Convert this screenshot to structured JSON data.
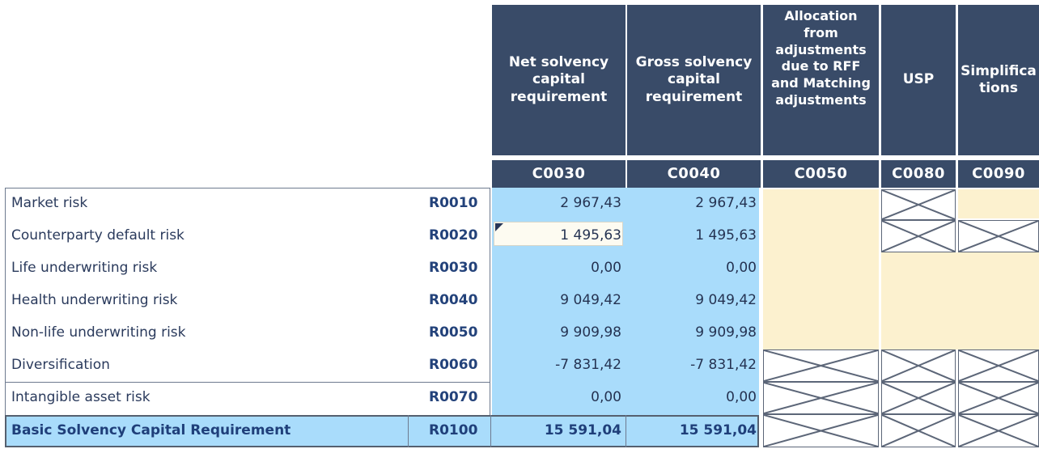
{
  "columns": [
    {
      "header": "Net solvency capital requirement",
      "code": "C0030"
    },
    {
      "header": "Gross solvency capital requirement",
      "code": "C0040"
    },
    {
      "header": "Allocation from adjustments due to RFF and Matching adjustments",
      "code": "C0050"
    },
    {
      "header": "USP",
      "code": "C0080"
    },
    {
      "header": "Simplifica tions",
      "code": "C0090"
    }
  ],
  "rows": [
    {
      "label": "Market risk",
      "code": "R0010",
      "net": "2 967,43",
      "gross": "2 967,43"
    },
    {
      "label": "Counterparty default risk",
      "code": "R0020",
      "net": "1 495,63",
      "gross": "1 495,63"
    },
    {
      "label": "Life underwriting risk",
      "code": "R0030",
      "net": "0,00",
      "gross": "0,00"
    },
    {
      "label": "Health underwriting risk",
      "code": "R0040",
      "net": "9 049,42",
      "gross": "9 049,42"
    },
    {
      "label": "Non-life underwriting risk",
      "code": "R0050",
      "net": "9 909,98",
      "gross": "9 909,98"
    },
    {
      "label": "Diversification",
      "code": "R0060",
      "net": "-7 831,42",
      "gross": "-7 831,42"
    },
    {
      "label": "Intangible asset risk",
      "code": "R0070",
      "net": "0,00",
      "gross": "0,00"
    }
  ],
  "total": {
    "label": "Basic Solvency Capital Requirement",
    "code": "R0100",
    "net": "15 591,04",
    "gross": "15 591,04"
  },
  "colors": {
    "header": "#394b68",
    "data_blue": "#a9dcfb",
    "cream": "#fcf1cf"
  }
}
